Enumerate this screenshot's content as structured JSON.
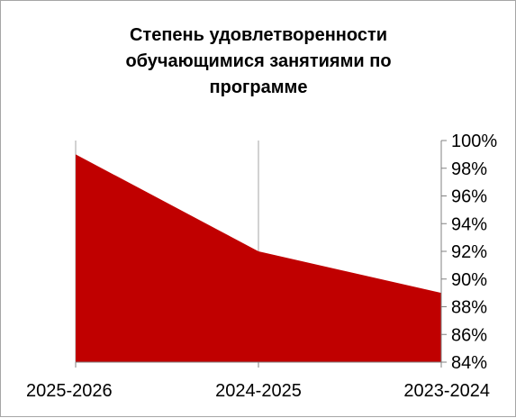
{
  "chart_data": {
    "type": "area",
    "title_lines": [
      "Степень удовлетворенности",
      "обучающимися занятиями  по",
      "программе"
    ],
    "categories": [
      "2025-2026",
      "2024-2025",
      "2023-2024"
    ],
    "values": [
      99,
      92,
      89
    ],
    "ylim": [
      84,
      100
    ],
    "y_ticks": [
      "100%",
      "98%",
      "96%",
      "94%",
      "92%",
      "90%",
      "88%",
      "86%",
      "84%"
    ],
    "y_axis_position": "right",
    "grid": "vertical",
    "legend": "none",
    "colors": {
      "fill": "#c00000",
      "grid": "#a6a6a6",
      "axis": "#808080",
      "border": "#a6a6a6"
    }
  }
}
